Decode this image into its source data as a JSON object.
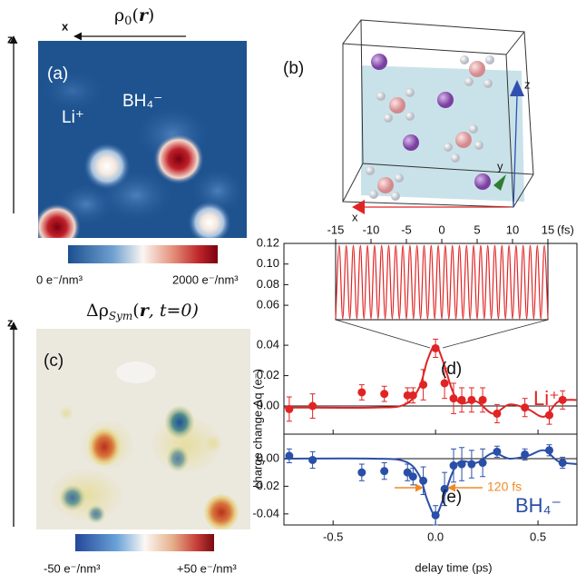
{
  "panel_a": {
    "label": "(a)",
    "title": [
      "ρ",
      "0",
      "(",
      "r",
      ")"
    ],
    "axis_z": "z",
    "axis_x": "x",
    "ion_li": "Li⁺",
    "ion_bh": "BH₄⁻",
    "colorbar_min": "0 e⁻/nm³",
    "colorbar_max": "2000 e⁻/nm³"
  },
  "panel_b": {
    "label": "(b)",
    "axis_x": "x",
    "axis_y": "y",
    "axis_z": "z"
  },
  "panel_c": {
    "label": "(c)",
    "title": [
      "Δρ",
      "Sym",
      "(",
      "r",
      ", t=0)"
    ],
    "axis_z": "z",
    "colorbar_min": "-50 e⁻/nm³",
    "colorbar_max": "+50 e⁻/nm³"
  },
  "chart_data": [
    {
      "type": "errorbar",
      "label": "(d)",
      "annotation": "Li⁺",
      "color": "#e02424",
      "ylabel": "charge change Δq (e⁻)",
      "xlim": [
        -0.74,
        0.69
      ],
      "ylim": [
        -0.0185,
        0.107
      ],
      "yticks": [
        {
          "value": 0,
          "label": "0.00"
        },
        {
          "value": 0.02,
          "label": "0.02"
        },
        {
          "value": 0.04,
          "label": "0.04"
        }
      ],
      "points": {
        "x": [
          -0.714,
          -0.6,
          -0.36,
          -0.25,
          -0.137,
          -0.11,
          -0.06,
          0.0,
          0.044,
          0.088,
          0.128,
          0.176,
          0.23,
          0.3,
          0.436,
          0.555,
          0.62
        ],
        "values": [
          -0.002,
          0.0,
          0.009,
          0.008,
          0.007,
          0.007,
          0.014,
          0.038,
          0.015,
          0.005,
          0.004,
          0.004,
          0.004,
          -0.005,
          -0.001,
          -0.006,
          0.004
        ],
        "errors": [
          0.008,
          0.008,
          0.005,
          0.005,
          0.005,
          0.005,
          0.01,
          0.006,
          0.01,
          0.01,
          0.008,
          0.008,
          0.008,
          0.006,
          0.006,
          0.006,
          0.006
        ]
      },
      "fit": {
        "x": [
          -0.74,
          -0.3,
          -0.15,
          -0.08,
          -0.04,
          0.0,
          0.04,
          0.08,
          0.12,
          0.2,
          0.28,
          0.36,
          0.45,
          0.53,
          0.6,
          0.69
        ],
        "values": [
          -0.001,
          -0.001,
          0.001,
          0.012,
          0.03,
          0.04,
          0.028,
          0.011,
          0.002,
          0.003,
          -0.005,
          0.001,
          -0.002,
          -0.007,
          0.003,
          0.004
        ]
      },
      "inset": {
        "x2lim": [
          -15,
          15
        ],
        "x2ticks": [
          -15,
          -10,
          -5,
          0,
          5,
          10,
          15
        ],
        "x2_unit": "(fs)",
        "ylim": [
          0.046,
          0.12
        ],
        "yticks": [
          {
            "value": 0.06,
            "label": "0.06"
          },
          {
            "value": 0.08,
            "label": "0.08"
          },
          {
            "value": 0.1,
            "label": "0.10"
          },
          {
            "value": 0.12,
            "label": "0.12"
          }
        ],
        "x": [
          -15,
          -14.5,
          -14,
          -13.5,
          -13,
          -12.5,
          -12,
          -11.5,
          -11,
          -10.5,
          -10,
          -9.5,
          -9,
          -8.5,
          -8,
          -7.5,
          -7,
          -6.5,
          -6,
          -5.5,
          -5,
          -4.5,
          -4,
          -3.5,
          -3,
          -2.5,
          -2,
          -1.5,
          -1,
          -0.5,
          0,
          0.5,
          1,
          1.5,
          2,
          2.5,
          3,
          3.5,
          4,
          4.5,
          5,
          5.5,
          6,
          6.5,
          7,
          7.5,
          8,
          8.5,
          9,
          9.5,
          10,
          10.5,
          11,
          11.5,
          12,
          12.5,
          13,
          13.5,
          14,
          14.5,
          15
        ],
        "values": [
          0.047,
          0.118,
          0.047,
          0.118,
          0.047,
          0.118,
          0.047,
          0.118,
          0.047,
          0.118,
          0.047,
          0.118,
          0.047,
          0.118,
          0.047,
          0.118,
          0.047,
          0.118,
          0.047,
          0.118,
          0.047,
          0.118,
          0.047,
          0.118,
          0.047,
          0.118,
          0.047,
          0.118,
          0.047,
          0.118,
          0.047,
          0.118,
          0.047,
          0.118,
          0.047,
          0.118,
          0.047,
          0.118,
          0.047,
          0.118,
          0.047,
          0.118,
          0.047,
          0.118,
          0.047,
          0.118,
          0.047,
          0.118,
          0.047,
          0.118,
          0.047,
          0.118,
          0.047,
          0.118,
          0.047,
          0.118,
          0.047,
          0.118,
          0.047,
          0.118,
          0.047
        ]
      }
    },
    {
      "type": "errorbar",
      "label": "(e)",
      "annotation": "BH₄⁻",
      "color": "#2a4fa8",
      "xlabel": "delay time (ps)",
      "note": "120 fs",
      "xlim": [
        -0.74,
        0.69
      ],
      "ylim": [
        -0.048,
        0.0177
      ],
      "xticks": [
        -0.5,
        {
          "value": 0,
          "label": "0.0"
        },
        0.5
      ],
      "yticks": [
        {
          "value": 0,
          "label": "0.00"
        },
        {
          "value": -0.02,
          "label": "-0.02"
        },
        {
          "value": -0.04,
          "label": "-0.04"
        }
      ],
      "points": {
        "x": [
          -0.714,
          -0.6,
          -0.36,
          -0.25,
          -0.137,
          -0.11,
          -0.06,
          0.0,
          0.044,
          0.088,
          0.128,
          0.176,
          0.23,
          0.3,
          0.436,
          0.555,
          0.62
        ],
        "values": [
          0.002,
          -0.001,
          -0.01,
          -0.009,
          -0.01,
          -0.013,
          -0.016,
          -0.041,
          -0.022,
          -0.005,
          -0.004,
          -0.004,
          -0.003,
          0.005,
          0.003,
          0.006,
          -0.003
        ],
        "errors": [
          0.005,
          0.006,
          0.006,
          0.006,
          0.006,
          0.006,
          0.01,
          0.007,
          0.012,
          0.012,
          0.012,
          0.01,
          0.01,
          0.004,
          0.004,
          0.004,
          0.004
        ]
      },
      "fit": {
        "x": [
          -0.74,
          -0.3,
          -0.15,
          -0.08,
          -0.04,
          0.0,
          0.04,
          0.08,
          0.12,
          0.2,
          0.28,
          0.36,
          0.45,
          0.53,
          0.6,
          0.69
        ],
        "values": [
          0.0,
          0.0,
          -0.002,
          -0.012,
          -0.03,
          -0.041,
          -0.028,
          -0.011,
          -0.002,
          -0.003,
          0.004,
          0.0,
          0.002,
          0.006,
          -0.002,
          -0.004
        ]
      }
    }
  ]
}
